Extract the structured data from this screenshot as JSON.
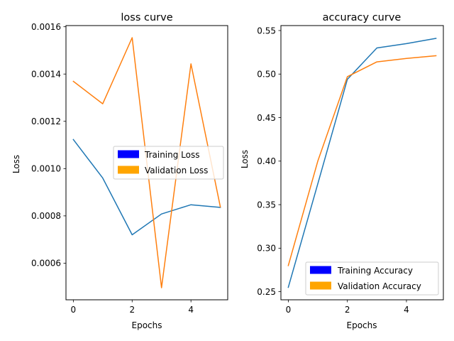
{
  "chart_data": [
    {
      "type": "line",
      "title": "loss curve",
      "xlabel": "Epochs",
      "ylabel": "Loss",
      "x": [
        0,
        1,
        2,
        3,
        4,
        5
      ],
      "xticks": [
        "0",
        "2",
        "4"
      ],
      "yticks": [
        "0.0006",
        "0.0008",
        "0.0010",
        "0.0012",
        "0.0014",
        "0.0016"
      ],
      "xlim": [
        -0.25,
        5.25
      ],
      "ylim": [
        0.000445,
        0.001605
      ],
      "series": [
        {
          "name": "Training Loss",
          "color": "#1f77b4",
          "legend_color": "#0000ff",
          "values": [
            0.001123,
            0.00096,
            0.00072,
            0.000808,
            0.000847,
            0.000836
          ]
        },
        {
          "name": "Validation Loss",
          "color": "#ff7f0e",
          "legend_color": "#ffa500",
          "values": [
            0.001369,
            0.001274,
            0.001554,
            0.000496,
            0.001443,
            0.000838
          ]
        }
      ],
      "legend": "center-right",
      "grid": false
    },
    {
      "type": "line",
      "title": "accuracy curve",
      "xlabel": "Epochs",
      "ylabel": "Loss",
      "x": [
        0,
        1,
        2,
        3,
        4,
        5
      ],
      "xticks": [
        "0",
        "2",
        "4"
      ],
      "yticks": [
        "0.25",
        "0.30",
        "0.35",
        "0.40",
        "0.45",
        "0.50",
        "0.55"
      ],
      "xlim": [
        -0.25,
        5.25
      ],
      "ylim": [
        0.2407,
        0.5557
      ],
      "series": [
        {
          "name": "Training Accuracy",
          "color": "#1f77b4",
          "legend_color": "#0000ff",
          "values": [
            0.255,
            0.374,
            0.494,
            0.53,
            0.535,
            0.541
          ]
        },
        {
          "name": "Validation Accuracy",
          "color": "#ff7f0e",
          "legend_color": "#ffa500",
          "values": [
            0.28,
            0.4,
            0.497,
            0.514,
            0.518,
            0.521
          ]
        }
      ],
      "legend": "lower-right",
      "grid": false
    }
  ]
}
